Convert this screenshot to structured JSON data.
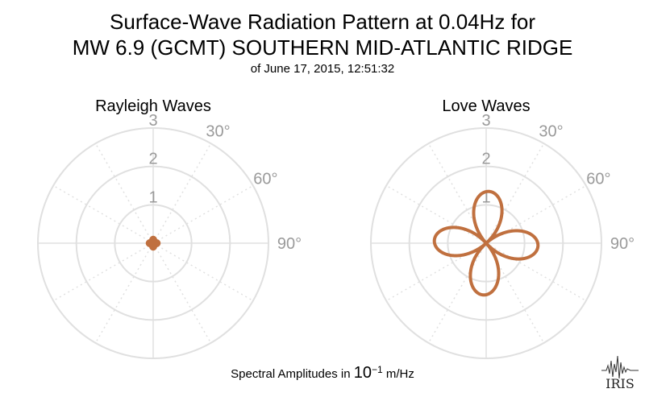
{
  "title": {
    "line1": "Surface-Wave Radiation Pattern at 0.04Hz for",
    "line2": "MW 6.9 (GCMT) SOUTHERN MID-ATLANTIC RIDGE",
    "line3": "of June 17, 2015, 12:51:32"
  },
  "footer": {
    "prefix": "Spectral Amplitudes in ",
    "base": "10",
    "exponent": "−1",
    "unit": " m/Hz"
  },
  "logo": {
    "text": "IRIS"
  },
  "colors": {
    "trace": "#c0703f",
    "grid": "#e0e0e0",
    "label": "#9a9a9a"
  },
  "chart_data": [
    {
      "type": "polar-line",
      "title": "Rayleigh Waves",
      "radial_ticks": [
        "1",
        "2",
        "3"
      ],
      "radial_range": [
        0,
        3
      ],
      "angle_ticks": [
        "30°",
        "60°",
        "90°"
      ],
      "series": [
        {
          "pattern": "four-lobe",
          "max_amplitude": 0.12,
          "lobe_axes_deg": [
            0,
            90,
            180,
            270
          ]
        }
      ]
    },
    {
      "type": "polar-line",
      "title": "Love Waves",
      "radial_ticks": [
        "1",
        "2",
        "3"
      ],
      "radial_range": [
        0,
        3
      ],
      "angle_ticks": [
        "30°",
        "60°",
        "90°"
      ],
      "series": [
        {
          "pattern": "four-lobe",
          "max_amplitude": 1.35,
          "lobe_axes_deg": [
            3,
            93,
            183,
            273
          ]
        }
      ]
    }
  ]
}
